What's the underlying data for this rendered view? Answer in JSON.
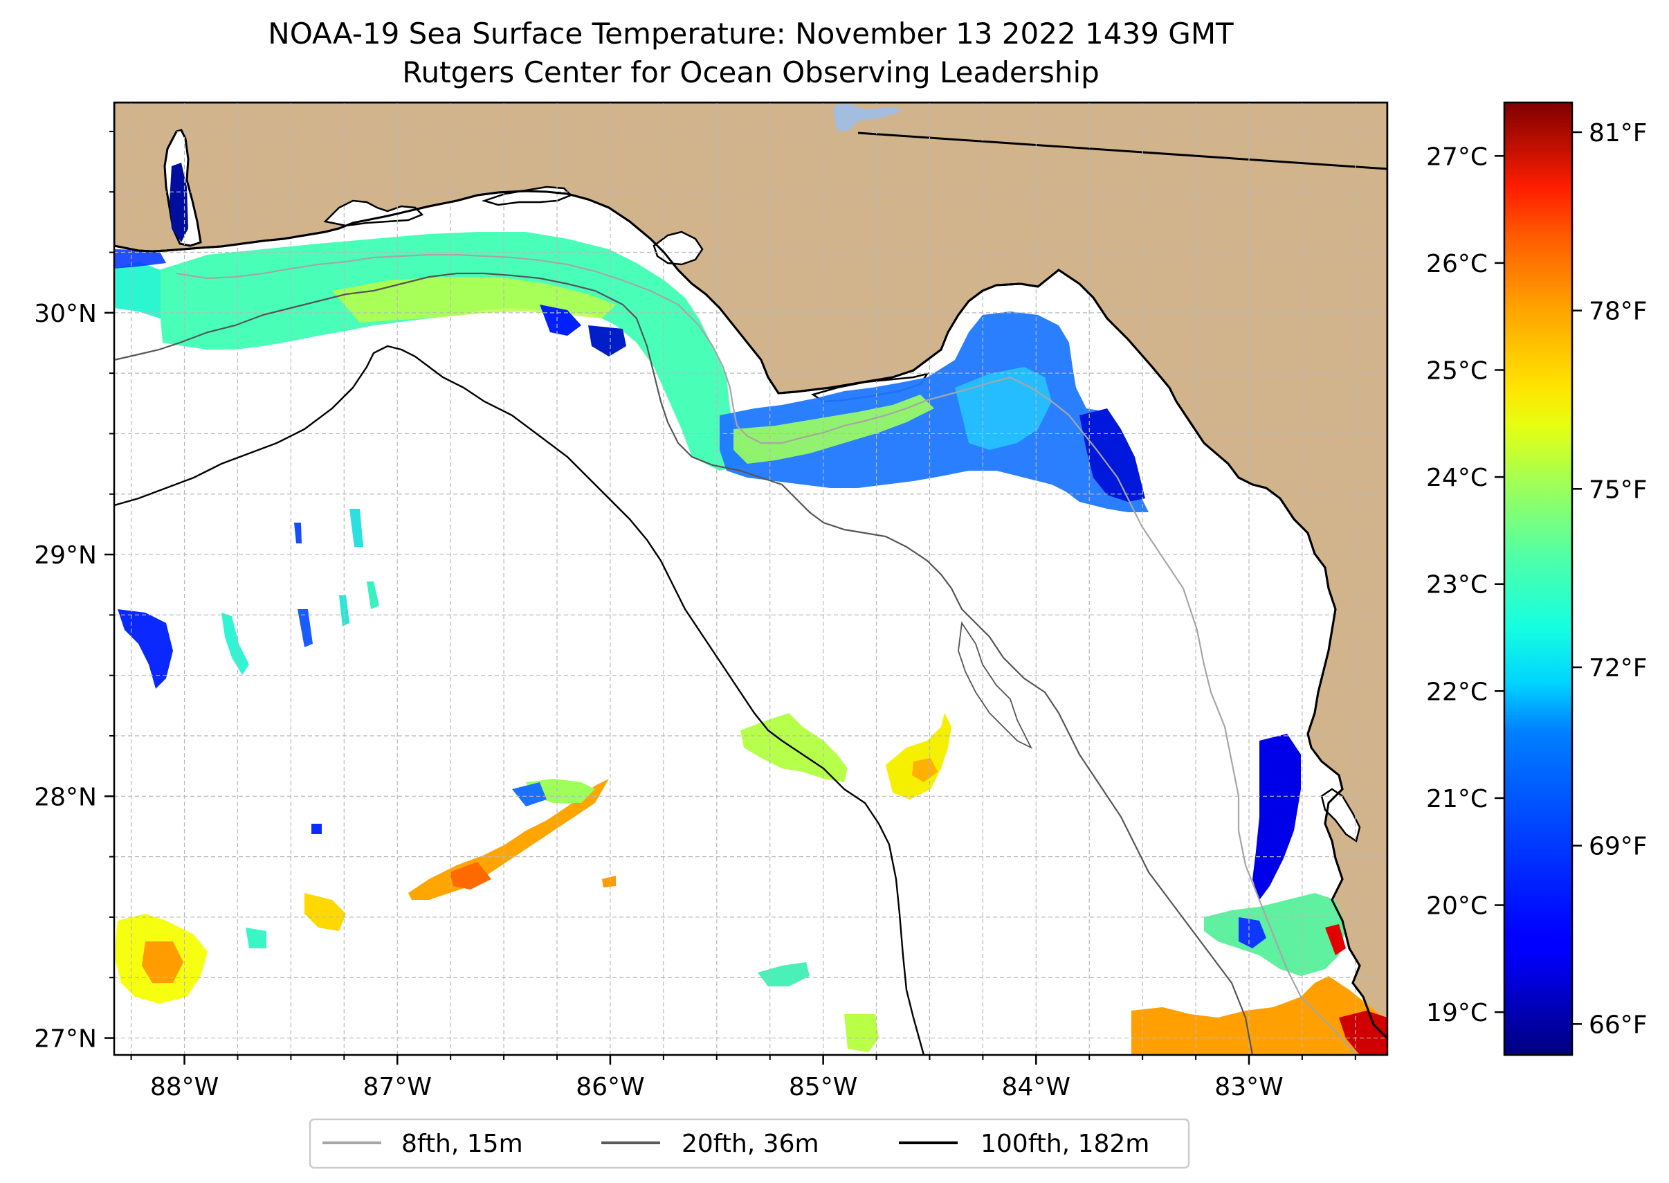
{
  "title": {
    "line1": "NOAA-19 Sea Surface Temperature: November 13 2022 1439 GMT",
    "line2": "Rutgers Center for Ocean Observing Leadership"
  },
  "map": {
    "lon_range": [
      -88.33,
      -82.35
    ],
    "lat_range": [
      26.93,
      30.87
    ],
    "lon_ticks": [
      {
        "value": -88,
        "label": "88°W"
      },
      {
        "value": -87,
        "label": "87°W"
      },
      {
        "value": -86,
        "label": "86°W"
      },
      {
        "value": -85,
        "label": "85°W"
      },
      {
        "value": -84,
        "label": "84°W"
      },
      {
        "value": -83,
        "label": "83°W"
      }
    ],
    "lat_ticks": [
      {
        "value": 27,
        "label": "27°N"
      },
      {
        "value": 28,
        "label": "28°N"
      },
      {
        "value": 29,
        "label": "29°N"
      },
      {
        "value": 30,
        "label": "30°N"
      }
    ],
    "minor_lon_step": 0.25,
    "minor_lat_step": 0.25,
    "colors": {
      "land": "#d2b48c",
      "ocean": "#ffffff",
      "grid": "#b8b8b8",
      "coast": "#000000",
      "lake": "#a3bde0"
    }
  },
  "colorbar": {
    "colormap": "jet",
    "celsius_range": [
      18.6,
      27.5
    ],
    "celsius_ticks": [
      {
        "value": 19,
        "label": "19°C"
      },
      {
        "value": 20,
        "label": "20°C"
      },
      {
        "value": 21,
        "label": "21°C"
      },
      {
        "value": 22,
        "label": "22°C"
      },
      {
        "value": 23,
        "label": "23°C"
      },
      {
        "value": 24,
        "label": "24°C"
      },
      {
        "value": 25,
        "label": "25°C"
      },
      {
        "value": 26,
        "label": "26°C"
      },
      {
        "value": 27,
        "label": "27°C"
      }
    ],
    "fahrenheit_ticks": [
      {
        "value": 66,
        "label": "66°F"
      },
      {
        "value": 69,
        "label": "69°F"
      },
      {
        "value": 72,
        "label": "72°F"
      },
      {
        "value": 75,
        "label": "75°F"
      },
      {
        "value": 78,
        "label": "78°F"
      },
      {
        "value": 81,
        "label": "81°F"
      }
    ]
  },
  "legend": {
    "items": [
      {
        "label": "8fth, 15m",
        "color": "#a6a6a6"
      },
      {
        "label": "20fth, 36m",
        "color": "#595959"
      },
      {
        "label": "100fth, 182m",
        "color": "#000000"
      }
    ]
  }
}
